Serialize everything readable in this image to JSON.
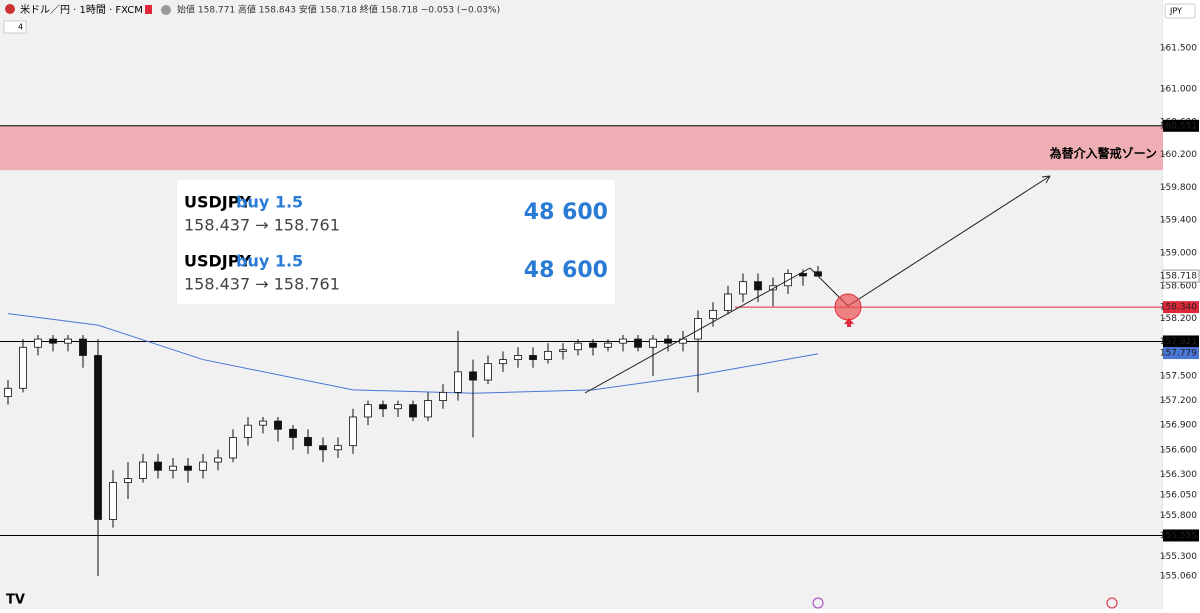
{
  "chart_data": {
    "type": "candlestick",
    "header": {
      "symbol": "米ドル／円 · 1時間 · FXCM",
      "ohlc": "始値 158.771 高値 158.843 安値 158.718 終値 158.718 −0.053 (−0.03%)",
      "indicator": "4",
      "currency": "JPY"
    },
    "open": [
      157.25,
      157.35,
      157.85,
      157.95,
      157.9,
      157.95,
      157.75,
      155.75,
      156.2,
      156.25,
      156.45,
      156.35,
      156.4,
      156.35,
      156.45,
      156.5,
      156.75,
      156.9,
      156.95,
      156.85,
      156.75,
      156.65,
      156.6,
      156.65,
      157.0,
      157.15,
      157.1,
      157.15,
      157.0,
      157.2,
      157.3,
      157.55,
      157.45,
      157.65,
      157.7,
      157.75,
      157.7,
      157.8,
      157.82,
      157.9,
      157.85,
      157.9,
      157.95,
      157.85,
      157.95,
      157.9,
      157.95,
      158.2,
      158.3,
      158.5,
      158.65,
      158.55,
      158.6,
      158.75,
      158.771
    ],
    "high": [
      157.45,
      157.95,
      158.0,
      158.0,
      158.0,
      158.0,
      157.95,
      156.35,
      156.45,
      156.55,
      156.55,
      156.5,
      156.5,
      156.55,
      156.6,
      156.85,
      157.0,
      157.0,
      157.0,
      156.9,
      156.85,
      156.75,
      156.75,
      157.1,
      157.2,
      157.2,
      157.2,
      157.2,
      157.3,
      157.4,
      158.05,
      157.7,
      157.75,
      157.8,
      157.85,
      157.85,
      157.9,
      157.9,
      157.95,
      157.95,
      157.95,
      158.0,
      158.0,
      158.0,
      158.0,
      158.05,
      158.3,
      158.4,
      158.6,
      158.75,
      158.75,
      158.7,
      158.8,
      158.8,
      158.843
    ],
    "low": [
      157.15,
      157.3,
      157.75,
      157.8,
      157.8,
      157.6,
      155.06,
      155.65,
      156.0,
      156.2,
      156.25,
      156.25,
      156.2,
      156.25,
      156.35,
      156.45,
      156.65,
      156.8,
      156.7,
      156.6,
      156.55,
      156.45,
      156.5,
      156.55,
      156.9,
      157.0,
      157.0,
      156.95,
      156.95,
      157.1,
      157.2,
      156.75,
      157.4,
      157.55,
      157.6,
      157.6,
      157.65,
      157.7,
      157.75,
      157.75,
      157.8,
      157.8,
      157.8,
      157.5,
      157.8,
      157.8,
      157.3,
      158.1,
      158.25,
      158.4,
      158.4,
      158.35,
      158.5,
      158.6,
      158.718
    ],
    "close": [
      157.35,
      157.85,
      157.95,
      157.9,
      157.95,
      157.75,
      155.75,
      156.2,
      156.25,
      156.45,
      156.35,
      156.4,
      156.35,
      156.45,
      156.5,
      156.75,
      156.9,
      156.95,
      156.85,
      156.75,
      156.65,
      156.6,
      156.65,
      157.0,
      157.15,
      157.1,
      157.15,
      157.0,
      157.2,
      157.3,
      157.55,
      157.45,
      157.65,
      157.7,
      157.75,
      157.7,
      157.8,
      157.82,
      157.9,
      157.85,
      157.9,
      157.95,
      157.85,
      157.95,
      157.9,
      157.95,
      158.2,
      158.3,
      158.5,
      158.65,
      158.55,
      158.6,
      158.75,
      158.72,
      158.718
    ],
    "ma": {
      "color": "#4a76d6",
      "x": [
        0,
        6,
        13,
        23,
        31,
        39,
        46,
        54
      ],
      "values": [
        158.26,
        158.12,
        157.7,
        157.33,
        157.29,
        157.33,
        157.51,
        157.77
      ],
      "label": {
        "value": 157.779,
        "label": "157.779"
      }
    },
    "ylim": [
      154.768,
      162.085
    ],
    "yticks": [
      {
        "value": 161.5,
        "label": "161.500"
      },
      {
        "value": 161.0,
        "label": "161.000"
      },
      {
        "value": 160.6,
        "label": "160.600"
      },
      {
        "value": 160.2,
        "label": "160.200"
      },
      {
        "value": 159.8,
        "label": "159.800"
      },
      {
        "value": 159.4,
        "label": "159.400"
      },
      {
        "value": 159.0,
        "label": "159.000"
      },
      {
        "value": 158.6,
        "label": "158.600"
      },
      {
        "value": 158.2,
        "label": "158.200"
      },
      {
        "value": 157.5,
        "label": "157.500"
      },
      {
        "value": 157.2,
        "label": "157.200"
      },
      {
        "value": 156.9,
        "label": "156.900"
      },
      {
        "value": 156.6,
        "label": "156.600"
      },
      {
        "value": 156.3,
        "label": "156.300"
      },
      {
        "value": 156.05,
        "label": "156.050"
      },
      {
        "value": 155.8,
        "label": "155.800"
      },
      {
        "value": 155.3,
        "label": "155.300"
      },
      {
        "value": 155.06,
        "label": "155.060"
      }
    ],
    "levels": [
      {
        "value": 160.551,
        "label": "160.551",
        "color": "#000000"
      },
      {
        "value": 158.34,
        "label": "158.340",
        "color": "#e0283c"
      },
      {
        "value": 157.921,
        "label": "157.921",
        "color": "#000000"
      },
      {
        "value": 155.555,
        "label": "155.555",
        "color": "#000000"
      }
    ],
    "last_price": {
      "value": 158.718,
      "label": "158.718"
    },
    "zone": {
      "top": 160.551,
      "bottom": 160.01,
      "label": "為替介入警戒ゾーン",
      "color": "#eeaeb3"
    },
    "trades": [
      {
        "symbol": "USDJPY",
        "side": "buy 1.5",
        "prices": "158.437 → 158.761",
        "profit": "48 600"
      },
      {
        "symbol": "USDJPY",
        "side": "buy 1.5",
        "prices": "158.437 → 158.761",
        "profit": "48 600"
      }
    ]
  }
}
